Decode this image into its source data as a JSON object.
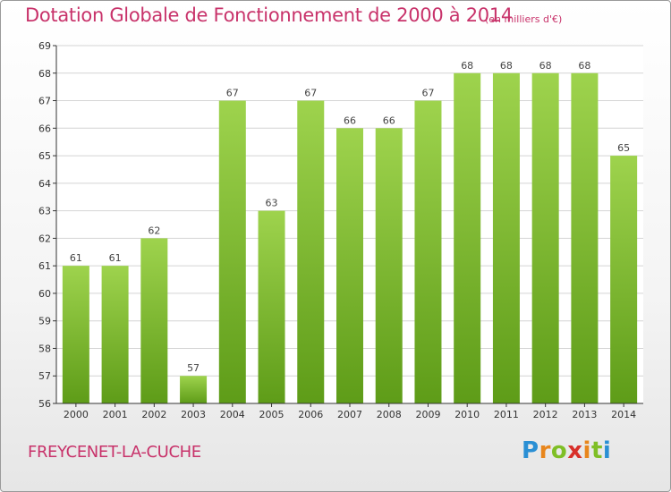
{
  "header": {
    "title": "Dotation Globale de Fonctionnement de 2000 à 2014",
    "units": "(en milliers d'€)"
  },
  "footer": {
    "commune": "FREYCENET-LA-CUCHE",
    "brand": "Proxiti"
  },
  "colors": {
    "title": "#c8326a",
    "bar_top": "#9ed34d",
    "bar_bottom": "#5e9c18",
    "axis": "#333333",
    "grid": "#d4d4d4"
  },
  "chart_data": {
    "type": "bar",
    "categories": [
      "2000",
      "2001",
      "2002",
      "2003",
      "2004",
      "2005",
      "2006",
      "2007",
      "2008",
      "2009",
      "2010",
      "2011",
      "2012",
      "2013",
      "2014"
    ],
    "values": [
      61,
      61,
      62,
      57,
      67,
      63,
      67,
      66,
      66,
      67,
      68,
      68,
      68,
      68,
      65
    ],
    "ylim": [
      56,
      69
    ],
    "yticks": [
      56,
      57,
      58,
      59,
      60,
      61,
      62,
      63,
      64,
      65,
      66,
      67,
      68,
      69
    ],
    "grid": true,
    "title": "Dotation Globale de Fonctionnement de 2000 à 2014",
    "xlabel": "",
    "ylabel": ""
  }
}
